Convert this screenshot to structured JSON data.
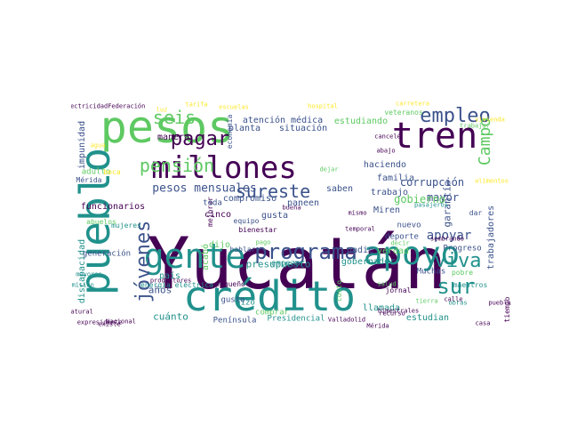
{
  "palette": {
    "dark_purple": "#440154",
    "indigo": "#3b528b",
    "teal": "#21918c",
    "green": "#5ec962",
    "yellow": "#fde725"
  },
  "words": [
    "Yucatán",
    "pesos",
    "crédito",
    "pueblo",
    "millones",
    "gente",
    "apoyo",
    "tren",
    "programa",
    "empleo",
    "jóvenes",
    "pagar",
    "pensión",
    "seis",
    "sureste",
    "viva",
    "sur",
    "Campo",
    "pesos mensuales",
    "corrupción",
    "mayor",
    "apoyar",
    "gobierno",
    "presupuesto",
    "compromiso",
    "cinco",
    "trabajo",
    "gobernador",
    "haciendo",
    "saben",
    "estudiando",
    "veteranos",
    "situación",
    "atención médica",
    "planta",
    "manera",
    "impunidad",
    "funcionarios",
    "discapacidad",
    "generación",
    "años",
    "país",
    "cuánto",
    "Península",
    "gusta",
    "paneen",
    "Miren",
    "nadie",
    "familia",
    "garantía",
    "trabajadores",
    "verdad",
    "deporte",
    "nuevo",
    "Progreso",
    "Muchas",
    "llamada",
    "estudian",
    "Presidencial",
    "pobre",
    "maestros",
    "dar",
    "acabó",
    "dijo",
    "empezar",
    "adulto",
    "Mérida",
    "economía",
    "equipo",
    "hizo",
    "comprar",
    "energía eléctrica",
    "Comisión",
    "mayores",
    "productores",
    "pequeño",
    "mejorar",
    "jornal",
    "tiempo",
    "ElectricidadFederación",
    "toda",
    "gusto",
    "beca",
    "mujeres",
    "abuelos",
    "hablar",
    "dejar",
    "bienestar",
    "costo",
    "salud",
    "pasajeros",
    "decir",
    "trabajar",
    "tierra",
    "pago",
    "vivienda",
    "alimentos",
    "agua",
    "luz",
    "tarifa",
    "escuelas",
    "hospital",
    "carretera",
    "obras",
    "sembrando",
    "mismo",
    "temporal",
    "buena",
    "natural",
    "expresidente",
    "Nacional",
    "Valladolid",
    "Mérida",
    "recurso",
    "cancelé",
    "abajo",
    "bimestrales",
    "existe",
    "calle",
    "casa",
    "pueblo"
  ]
}
